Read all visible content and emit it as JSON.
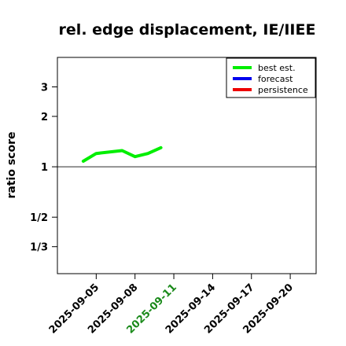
{
  "chart_data": {
    "type": "line",
    "title": "rel. edge displacement, IE/IIEE",
    "ylabel": "ratio score",
    "xlabel": "",
    "y_scale": "log",
    "ylim": [
      0.23,
      4.5
    ],
    "xlim": [
      "2025-09-02",
      "2025-09-22"
    ],
    "y_ticks": [
      {
        "label": "3",
        "value": 3
      },
      {
        "label": "2",
        "value": 2
      },
      {
        "label": "1",
        "value": 1
      },
      {
        "label": "1/2",
        "value": 0.5
      },
      {
        "label": "1/3",
        "value": 0.3333
      }
    ],
    "x_ticks": [
      {
        "label": "2025-09-05",
        "date": "2025-09-05",
        "color": "#000000"
      },
      {
        "label": "2025-09-08",
        "date": "2025-09-08",
        "color": "#000000"
      },
      {
        "label": "2025-09-11",
        "date": "2025-09-11",
        "color": "#1a8a1a"
      },
      {
        "label": "2025-09-14",
        "date": "2025-09-14",
        "color": "#000000"
      },
      {
        "label": "2025-09-17",
        "date": "2025-09-17",
        "color": "#000000"
      },
      {
        "label": "2025-09-20",
        "date": "2025-09-20",
        "color": "#000000"
      }
    ],
    "reference_line": {
      "value": 1,
      "color": "#555555"
    },
    "legend": {
      "placement": "top-right"
    },
    "series": [
      {
        "name": "best est.",
        "color": "#00ee00",
        "x": [
          "2025-09-04",
          "2025-09-05",
          "2025-09-07",
          "2025-09-08",
          "2025-09-09",
          "2025-09-10"
        ],
        "values": [
          1.08,
          1.2,
          1.25,
          1.15,
          1.2,
          1.3
        ]
      },
      {
        "name": "forecast",
        "color": "#0000ee",
        "x": [],
        "values": []
      },
      {
        "name": "persistence",
        "color": "#ee0000",
        "x": [],
        "values": []
      }
    ]
  }
}
